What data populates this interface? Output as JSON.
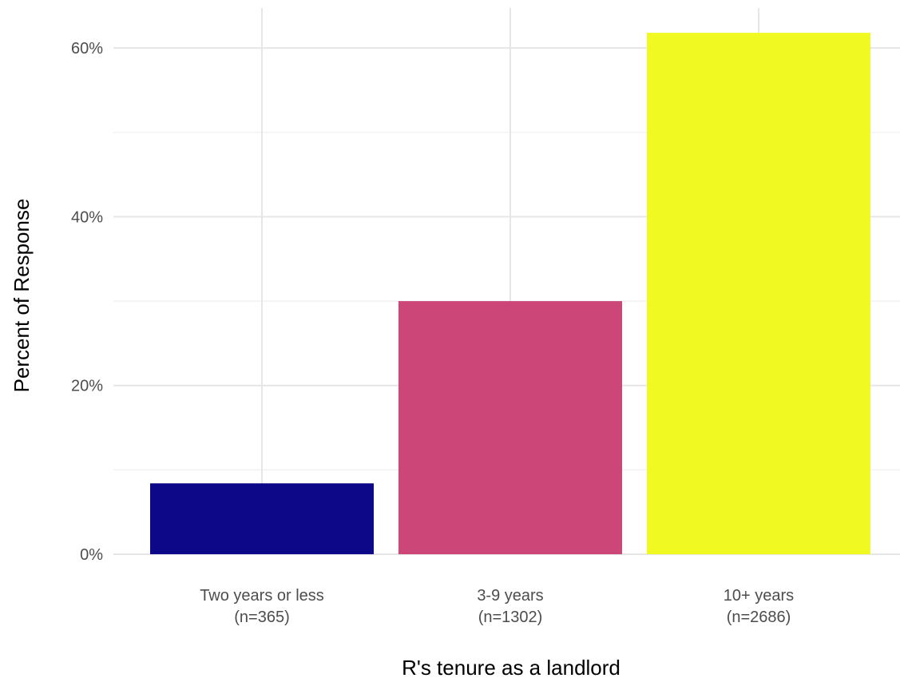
{
  "chart_data": {
    "type": "bar",
    "categories": [
      "Two years or less",
      "3-9 years",
      "10+ years"
    ],
    "category_counts": [
      "(n=365)",
      "(n=1302)",
      "(n=2686)"
    ],
    "values": [
      8.4,
      30.0,
      61.8
    ],
    "colors": [
      "#0d0887",
      "#cc4778",
      "#f0f921"
    ],
    "xlabel": "R's tenure as a landlord",
    "ylabel": "Percent of Response",
    "ylim": [
      0,
      65
    ],
    "y_ticks": [
      0,
      20,
      40,
      60
    ],
    "y_tick_labels": [
      "0%",
      "20%",
      "40%",
      "60%"
    ],
    "grid": true,
    "legend": "none"
  }
}
